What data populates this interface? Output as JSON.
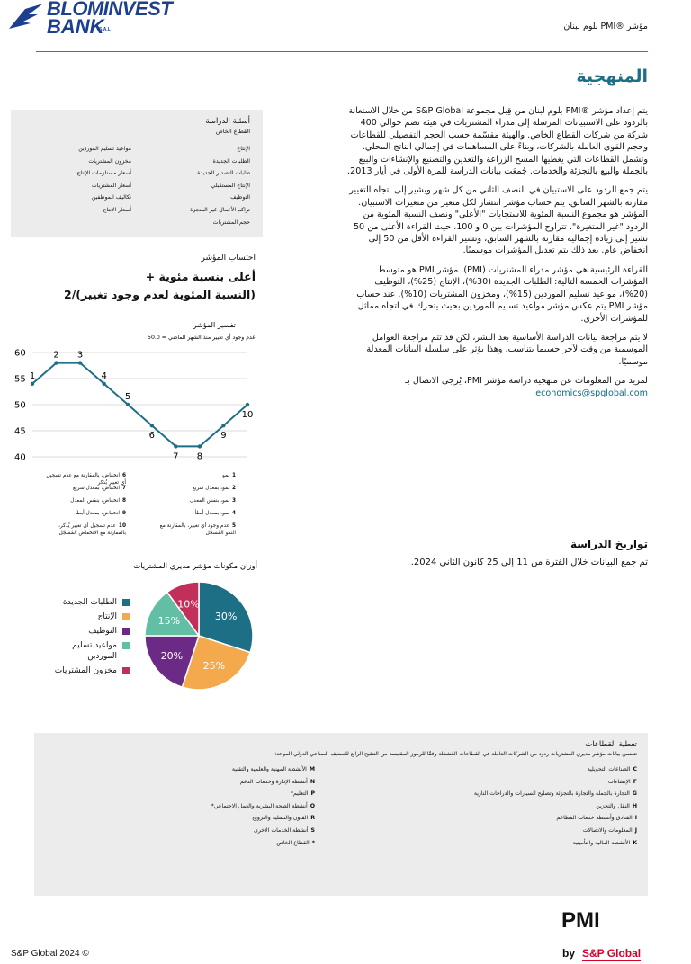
{
  "header": {
    "logo_line1": "BLOMINVEST",
    "logo_line2": "BANK",
    "logo_suffix": "S.A.L",
    "report_title": "مؤشر ®PMI بلوم لبنان"
  },
  "methodology": {
    "title": "المنهجية",
    "paragraphs": [
      "يتم إعداد مؤشر ®PMI بلوم لبنان من قِبل مجموعة S&P Global من خلال الاستعانة بالردود على الاستبيانات المرسلة إلى مدراء المشتريات في هيئة تضم حوالي 400 شركة من شركات القطاع الخاص. والهيئة مقسّمة حسب الحجم التفصيلي للقطاعات وحجم القوى العاملة بالشركات، وبناءً على المساهمات في إجمالي الناتج المحلي. وتشمل القطاعات التي يغطيها المسح الزراعة والتعدين والتصنيع والإنشاءات والبيع بالجملة والبيع بالتجزئة والخدمات. جُمعَت بيانات الدراسة للمرة الأولى في أيار 2013.",
      "يتم جمع الردود على الاستبيان في النصف الثاني من كل شهر ويشير إلى اتجاه التغيير مقارنة بالشهر السابق. يتم حساب مؤشر انتشار لكل متغير من متغيرات الاستبيان. المؤشر هو مجموع النسبة المئوية للاستجابات \"الأعلى\" ونصف النسبة المئوية من الردود \"غير المتغيرة\". تتراوح المؤشرات بين 0 و 100، حيث القراءة الأعلى من 50 تشير إلى زيادة إجمالية مقارنة بالشهر السابق، وتشير القراءة الأقل من 50 إلى انخفاض عام. بعد ذلك يتم تعديل المؤشرات موسميًا.",
      "القراءة الرئيسية هي مؤشر مدراء المشتريات (PMI). مؤشر PMI هو متوسط المؤشرات الخمسة التالية: الطلبات الجديدة (30%)، الإنتاج (25%)، التوظيف (20%)، مواعيد تسليم الموردين (15%)، ومخزون المشتريات (10%). عند حساب مؤشر PMI يتم عكس مؤشر مواعيد تسليم الموردين بحيث يتحرك في اتجاه مماثل للمؤشرات الأخرى.",
      "لا يتم مراجعة بيانات الدراسة الأساسية بعد النشر، لكن قد تتم مراجعة العوامل الموسمية من وقت لآخر حسبما يتناسب، وهذا يؤثر على سلسلة البيانات المعدلة موسميًا."
    ],
    "contact_text": "لمزيد من المعلومات عن منهجية دراسة مؤشر PMI، يُرجى الاتصال بـ",
    "contact_email": "economics@spglobal.com."
  },
  "survey_questions": {
    "title": "أسئلة الدراسة",
    "sector": "القطاع الخاص",
    "column_1": [
      "الإنتاج",
      "الطلبات الجديدة",
      "طلبات التصدير الجديدة",
      "الإنتاج المستقبلي",
      "التوظيف",
      "تراكم الأعمال غير المنجزة",
      "حجم المشتريات"
    ],
    "column_2": [
      "مواعيد تسليم الموردين",
      "مخزون المشتريات",
      "أسعار مستلزمات الإنتاج",
      "أسعار المشتريات",
      "تكاليف الموظفين",
      "أسعار الإنتاج"
    ]
  },
  "index_calculation": {
    "title": "احتساب المؤشر",
    "formula": [
      "أعلى بنسبة مئوية +",
      "(النسبة المئوية لعدم وجود تغيير)/2"
    ]
  },
  "chart_data": [
    {
      "type": "line",
      "title": "تفسير المؤشر",
      "subtitle": "50.0 = عدم وجود أي تغيير منذ الشهر الماضي",
      "categories": [
        "1",
        "2",
        "3",
        "4",
        "5",
        "6",
        "7",
        "8",
        "9",
        "10"
      ],
      "values": [
        54,
        58,
        58,
        54,
        50,
        46,
        42,
        42,
        46,
        50
      ],
      "color": "#1d6f85",
      "ylim": [
        40,
        60
      ],
      "yticks": [
        40,
        45,
        50,
        55,
        60
      ],
      "grid": true
    },
    {
      "type": "pie",
      "title": "أوزان مكونات مؤشر مديري المشتريات",
      "categories": [
        "الطلبات الجديدة",
        "الإنتاج",
        "التوظيف",
        "مواعيد تسليم الموردين",
        "مخزون المشتريات"
      ],
      "values": [
        30,
        25,
        20,
        15,
        10
      ],
      "value_labels": [
        "30%",
        "25%",
        "20%",
        "15%",
        "10%"
      ],
      "colors": [
        "#1d6f85",
        "#f4a94c",
        "#6b2a86",
        "#62bfa5",
        "#c0305b"
      ]
    }
  ],
  "index_interpretation_notes": {
    "column_1": [
      {
        "number": "1",
        "text": "نمو"
      },
      {
        "number": "2",
        "text": "نمو، بمعدل سريع"
      },
      {
        "number": "3",
        "text": "نمو، بنفس المعدل"
      },
      {
        "number": "4",
        "text": "نمو، بمعدل أبطأ"
      },
      {
        "number": "5",
        "text": "عدم وجود أي تغيير، بالمقارنة مع النمو المُسجّل"
      }
    ],
    "column_2": [
      {
        "number": "6",
        "text": "انخفاض، بالمقارنة مع عدم تسجيل أي تغيير يُذكر"
      },
      {
        "number": "7",
        "text": "انخفاض، بمعدل سريع"
      },
      {
        "number": "8",
        "text": "انخفاض، بنفس المعدل"
      },
      {
        "number": "9",
        "text": "انخفاض، بمعدل أبطأ"
      },
      {
        "number": "10",
        "text": "عدم تسجيل أي تغيير يُذكر، بالمقارنة مع الانخفاض المُسجّل"
      }
    ]
  },
  "survey_dates": {
    "title": "تواريخ الدراسة",
    "text": "تم جمع البيانات خلال الفترة من 11 إلى 25 كانون الثاني 2024."
  },
  "sector_coverage": {
    "title": "تغطية القطاعات",
    "intro": "تتضمن بيانات مؤشر مديري المشتريات ردود من الشركات العاملة في القطاعات المُشمَلة وفقًا للرموز المقتبسة من التنقيح الرابع للتصنيف الصناعي الدولي الموحد:",
    "column_1": [
      {
        "code": "C",
        "name": "الصناعات التحويلية"
      },
      {
        "code": "F",
        "name": "الإنشاءات"
      },
      {
        "code": "G",
        "name": "التجارة بالجملة والتجارة بالتجزئة وتصليح السيارات والدراجات النارية"
      },
      {
        "code": "H",
        "name": "النقل والتخزين"
      },
      {
        "code": "I",
        "name": "الفنادق وأنشطة خدمات المطاعم"
      },
      {
        "code": "J",
        "name": "المعلومات والاتصالات"
      },
      {
        "code": "K",
        "name": "الأنشطة المالية والتأمينية"
      }
    ],
    "column_2": [
      {
        "code": "M",
        "name": "الأنشطة المهنية والعلمية والتقنية"
      },
      {
        "code": "N",
        "name": "أنشطة الإدارة وخدمات الدعم"
      },
      {
        "code": "P",
        "name": "التعليم*"
      },
      {
        "code": "Q",
        "name": "أنشطة الصحة البشرية والعمل الاجتماعي*"
      },
      {
        "code": "R",
        "name": "الفنون والتسلية والترويج"
      },
      {
        "code": "S",
        "name": "أنشطة الخدمات الأخرى"
      },
      {
        "code": "*",
        "name": "القطاع الخاص"
      }
    ]
  },
  "footer": {
    "copyright": "S&P Global 2024 ©",
    "brand": "PMI",
    "by": "by",
    "brand_owner": "S&P Global"
  }
}
